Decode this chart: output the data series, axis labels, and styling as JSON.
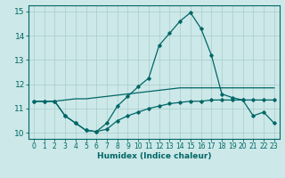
{
  "title": "",
  "xlabel": "Humidex (Indice chaleur)",
  "background_color": "#cce8e8",
  "grid_color": "#aacccc",
  "line_color": "#006666",
  "spine_color": "#006666",
  "xlim": [
    -0.5,
    23.5
  ],
  "ylim": [
    9.75,
    15.25
  ],
  "yticks": [
    10,
    11,
    12,
    13,
    14,
    15
  ],
  "xticks": [
    0,
    1,
    2,
    3,
    4,
    5,
    6,
    7,
    8,
    9,
    10,
    11,
    12,
    13,
    14,
    15,
    16,
    17,
    18,
    19,
    20,
    21,
    22,
    23
  ],
  "series_main_x": [
    0,
    1,
    2,
    3,
    4,
    5,
    6,
    7,
    8,
    9,
    10,
    11,
    12,
    13,
    14,
    15,
    16,
    17,
    18,
    19,
    20,
    21,
    22,
    23
  ],
  "series_main_y": [
    11.3,
    11.3,
    11.3,
    10.7,
    10.4,
    10.1,
    10.05,
    10.4,
    11.1,
    11.5,
    11.9,
    12.25,
    13.6,
    14.1,
    14.6,
    14.95,
    14.3,
    13.2,
    11.6,
    11.45,
    11.35,
    10.7,
    10.85,
    10.4
  ],
  "series_flat_x": [
    0,
    1,
    2,
    3,
    4,
    5,
    6,
    7,
    8,
    9,
    10,
    11,
    12,
    13,
    14,
    15,
    16,
    17,
    18,
    19,
    20,
    21,
    22,
    23
  ],
  "series_flat_y": [
    11.3,
    11.3,
    11.3,
    10.7,
    10.4,
    10.1,
    10.05,
    10.15,
    10.5,
    10.7,
    10.85,
    11.0,
    11.1,
    11.2,
    11.25,
    11.3,
    11.3,
    11.35,
    11.35,
    11.35,
    11.35,
    11.35,
    11.35,
    11.35
  ],
  "series_rise_x": [
    0,
    1,
    2,
    3,
    4,
    5,
    6,
    7,
    8,
    9,
    10,
    11,
    12,
    13,
    14,
    15,
    16,
    17,
    18,
    19,
    20,
    21,
    22,
    23
  ],
  "series_rise_y": [
    11.3,
    11.3,
    11.3,
    11.35,
    11.4,
    11.4,
    11.45,
    11.5,
    11.55,
    11.6,
    11.65,
    11.7,
    11.75,
    11.8,
    11.85,
    11.85,
    11.85,
    11.85,
    11.85,
    11.85,
    11.85,
    11.85,
    11.85,
    11.85
  ]
}
